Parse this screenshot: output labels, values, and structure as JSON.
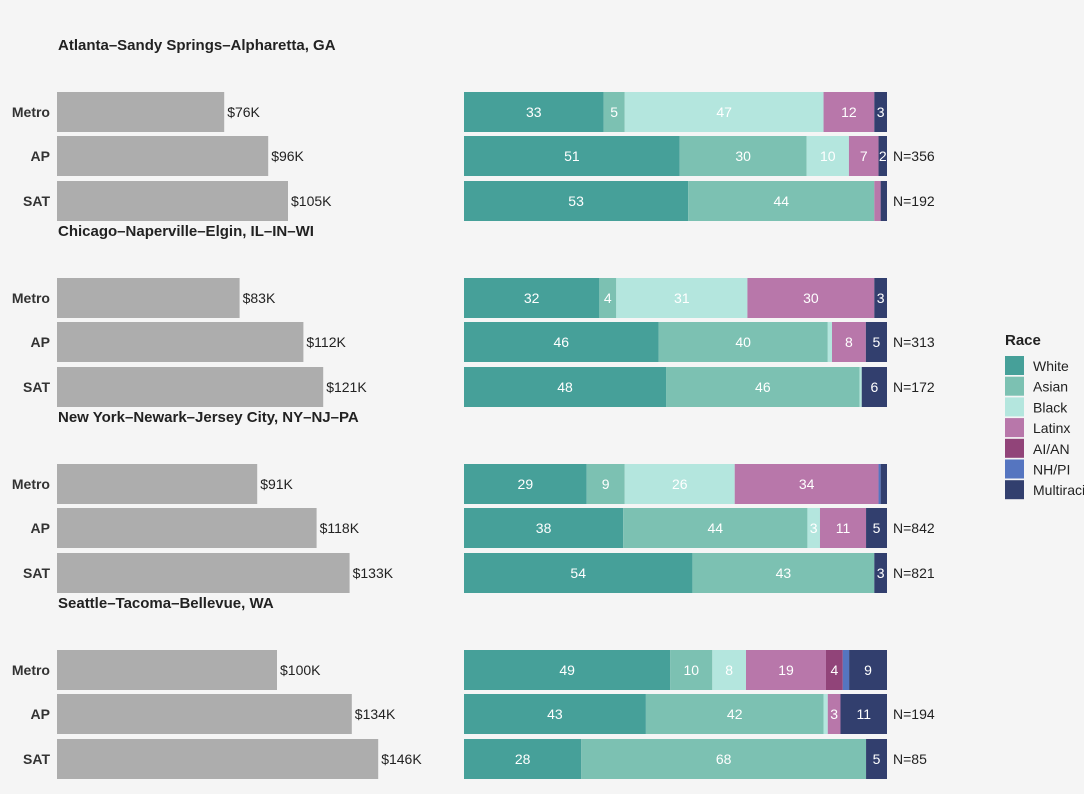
{
  "chart_data": {
    "type": "bar",
    "legend": {
      "title": "Race",
      "placement": "right",
      "entries": [
        {
          "name": "White",
          "color": "#46a099"
        },
        {
          "name": "Asian",
          "color": "#7cc1b2"
        },
        {
          "name": "Black",
          "color": "#b4e6de"
        },
        {
          "name": "Latinx",
          "color": "#b877aa"
        },
        {
          "name": "AI/AN",
          "color": "#914479"
        },
        {
          "name": "NH/PI",
          "color": "#5575c0"
        },
        {
          "name": "Multiracial",
          "color": "#323f6e"
        }
      ]
    },
    "income_xlim": [
      0,
      175
    ],
    "panels": [
      {
        "title": "Atlanta–Sandy Springs–Alpharetta, GA",
        "rows": [
          {
            "label": "Metro",
            "income": 76,
            "income_label": "$76K",
            "race": [
              33,
              5,
              47,
              12,
              0,
              0,
              3
            ],
            "n_label": ""
          },
          {
            "label": "AP",
            "income": 96,
            "income_label": "$96K",
            "race": [
              51,
              30,
              10,
              7,
              0,
              0,
              2
            ],
            "n_label": "N=356"
          },
          {
            "label": "SAT",
            "income": 105,
            "income_label": "$105K",
            "race": [
              53,
              44,
              0,
              1.5,
              0,
              0,
              1.5
            ],
            "n_label": "N=192"
          }
        ]
      },
      {
        "title": "Chicago–Naperville–Elgin, IL–IN–WI",
        "rows": [
          {
            "label": "Metro",
            "income": 83,
            "income_label": "$83K",
            "race": [
              32,
              4,
              31,
              30,
              0,
              0,
              3
            ],
            "n_label": ""
          },
          {
            "label": "AP",
            "income": 112,
            "income_label": "$112K",
            "race": [
              46,
              40,
              1,
              8,
              0,
              0,
              5
            ],
            "n_label": "N=313"
          },
          {
            "label": "SAT",
            "income": 121,
            "income_label": "$121K",
            "race": [
              48,
              46,
              0.5,
              0,
              0,
              0,
              6
            ],
            "n_label": "N=172"
          }
        ]
      },
      {
        "title": "New York–Newark–Jersey City, NY–NJ–PA",
        "rows": [
          {
            "label": "Metro",
            "income": 91,
            "income_label": "$91K",
            "race": [
              29,
              9,
              26,
              34,
              0,
              0.5,
              1.5
            ],
            "n_label": ""
          },
          {
            "label": "AP",
            "income": 118,
            "income_label": "$118K",
            "race": [
              38,
              44,
              3,
              11,
              0,
              0,
              5
            ],
            "n_label": "N=842"
          },
          {
            "label": "SAT",
            "income": 133,
            "income_label": "$133K",
            "race": [
              54,
              43,
              0,
              0,
              0,
              0,
              3
            ],
            "n_label": "N=821"
          }
        ]
      },
      {
        "title": "Seattle–Tacoma–Bellevue, WA",
        "rows": [
          {
            "label": "Metro",
            "income": 100,
            "income_label": "$100K",
            "race": [
              49,
              10,
              8,
              19,
              4,
              1.5,
              9
            ],
            "n_label": ""
          },
          {
            "label": "AP",
            "income": 134,
            "income_label": "$134K",
            "race": [
              43,
              42,
              1,
              3,
              0,
              0,
              11
            ],
            "n_label": "N=194"
          },
          {
            "label": "SAT",
            "income": 146,
            "income_label": "$146K",
            "race": [
              28,
              68,
              0,
              0,
              0,
              0,
              5
            ],
            "n_label": "N=85"
          }
        ]
      }
    ]
  }
}
